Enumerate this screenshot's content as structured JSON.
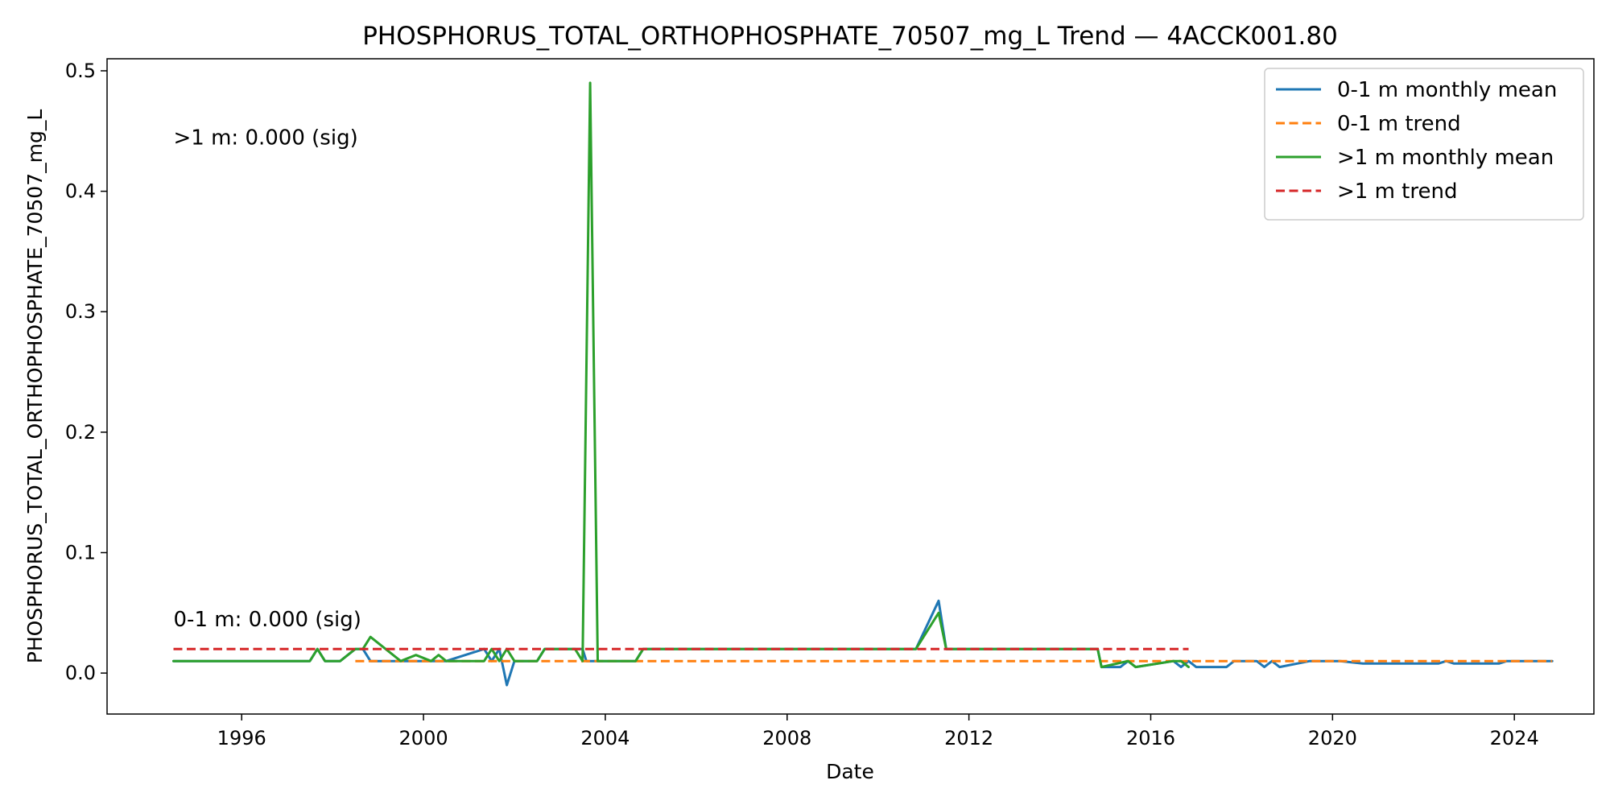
{
  "chart_data": {
    "type": "line",
    "title": "PHOSPHORUS_TOTAL_ORTHOPHOSPHATE_70507_mg_L Trend — 4ACCK001.80",
    "xlabel": "Date",
    "ylabel": "PHOSPHORUS_TOTAL_ORTHOPHOSPHATE_70507_mg_L",
    "x_axis": {
      "type": "date",
      "range": [
        "1993-01-15",
        "2025-10-01"
      ],
      "ticks": [
        "1996",
        "2000",
        "2004",
        "2008",
        "2012",
        "2016",
        "2020",
        "2024"
      ]
    },
    "y_axis": {
      "range": [
        -0.034,
        0.51
      ],
      "ticks": [
        "0.0",
        "0.1",
        "0.2",
        "0.3",
        "0.4",
        "0.5"
      ]
    },
    "grid": false,
    "legend": {
      "position": "top-right"
    },
    "series": [
      {
        "name": "0-1 m monthly mean",
        "color": "#1f77b4",
        "style": "solid",
        "points": [
          [
            "1994-07",
            0.01
          ],
          [
            "1997-07",
            0.01
          ],
          [
            "1997-09",
            0.02
          ],
          [
            "1997-11",
            0.01
          ],
          [
            "1998-03",
            0.01
          ],
          [
            "1998-07",
            0.02
          ],
          [
            "1998-09",
            0.02
          ],
          [
            "1998-11",
            0.01
          ],
          [
            "1999-07",
            0.01
          ],
          [
            "1999-11",
            0.01
          ],
          [
            "2000-03",
            0.01
          ],
          [
            "2000-07",
            0.01
          ],
          [
            "2001-05",
            0.02
          ],
          [
            "2001-07",
            0.01
          ],
          [
            "2001-09",
            0.02
          ],
          [
            "2001-11",
            -0.01
          ],
          [
            "2002-01",
            0.01
          ],
          [
            "2002-07",
            0.01
          ],
          [
            "2002-09",
            0.02
          ],
          [
            "2003-07",
            0.02
          ],
          [
            "2003-08",
            0.01
          ],
          [
            "2003-09",
            0.01
          ],
          [
            "2004-09",
            0.01
          ],
          [
            "2004-11",
            0.02
          ],
          [
            "2010-11",
            0.02
          ],
          [
            "2011-05",
            0.06
          ],
          [
            "2011-07",
            0.02
          ],
          [
            "2014-11",
            0.02
          ],
          [
            "2014-12",
            0.005
          ],
          [
            "2015-05",
            0.005
          ],
          [
            "2015-07",
            0.01
          ],
          [
            "2015-09",
            0.005
          ],
          [
            "2016-07",
            0.01
          ],
          [
            "2016-09",
            0.005
          ],
          [
            "2016-11",
            0.01
          ],
          [
            "2017-01",
            0.005
          ],
          [
            "2017-09",
            0.005
          ],
          [
            "2017-11",
            0.01
          ],
          [
            "2018-05",
            0.01
          ],
          [
            "2018-07",
            0.005
          ],
          [
            "2018-09",
            0.01
          ],
          [
            "2018-11",
            0.005
          ],
          [
            "2019-07",
            0.01
          ],
          [
            "2020-03",
            0.01
          ],
          [
            "2020-09",
            0.008
          ],
          [
            "2022-05",
            0.008
          ],
          [
            "2022-07",
            0.01
          ],
          [
            "2022-09",
            0.008
          ],
          [
            "2023-09",
            0.008
          ],
          [
            "2023-11",
            0.01
          ],
          [
            "2024-11",
            0.01
          ]
        ]
      },
      {
        "name": "0-1 m trend",
        "color": "#ff7f0e",
        "style": "dashed",
        "points": [
          [
            "1998-07",
            0.01
          ],
          [
            "2024-11",
            0.01
          ]
        ]
      },
      {
        "name": ">1 m monthly mean",
        "color": "#2ca02c",
        "style": "solid",
        "points": [
          [
            "1994-07",
            0.01
          ],
          [
            "1997-07",
            0.01
          ],
          [
            "1997-09",
            0.02
          ],
          [
            "1997-11",
            0.01
          ],
          [
            "1998-03",
            0.01
          ],
          [
            "1998-07",
            0.02
          ],
          [
            "1998-09",
            0.02
          ],
          [
            "1998-11",
            0.03
          ],
          [
            "1999-07",
            0.01
          ],
          [
            "1999-11",
            0.015
          ],
          [
            "2000-03",
            0.01
          ],
          [
            "2000-05",
            0.015
          ],
          [
            "2000-07",
            0.01
          ],
          [
            "2001-05",
            0.01
          ],
          [
            "2001-07",
            0.02
          ],
          [
            "2001-09",
            0.01
          ],
          [
            "2001-11",
            0.02
          ],
          [
            "2002-01",
            0.01
          ],
          [
            "2002-07",
            0.01
          ],
          [
            "2002-09",
            0.02
          ],
          [
            "2003-05",
            0.02
          ],
          [
            "2003-07",
            0.01
          ],
          [
            "2003-09",
            0.49
          ],
          [
            "2003-11",
            0.01
          ],
          [
            "2004-09",
            0.01
          ],
          [
            "2004-11",
            0.02
          ],
          [
            "2010-11",
            0.02
          ],
          [
            "2011-05",
            0.05
          ],
          [
            "2011-07",
            0.02
          ],
          [
            "2014-11",
            0.02
          ],
          [
            "2014-12",
            0.005
          ],
          [
            "2015-07",
            0.01
          ],
          [
            "2015-09",
            0.005
          ],
          [
            "2016-07",
            0.01
          ],
          [
            "2016-09",
            0.01
          ],
          [
            "2016-11",
            0.005
          ]
        ]
      },
      {
        "name": ">1 m trend",
        "color": "#d62728",
        "style": "dashed",
        "points": [
          [
            "1994-07",
            0.02
          ],
          [
            "2016-11",
            0.02
          ]
        ]
      }
    ],
    "annotations": [
      {
        "text": ">1 m: 0.000 (sig)",
        "x": "1994-07",
        "y": 0.445
      },
      {
        "text": "0-1 m: 0.000 (sig)",
        "x": "1994-07",
        "y": 0.045
      }
    ]
  }
}
